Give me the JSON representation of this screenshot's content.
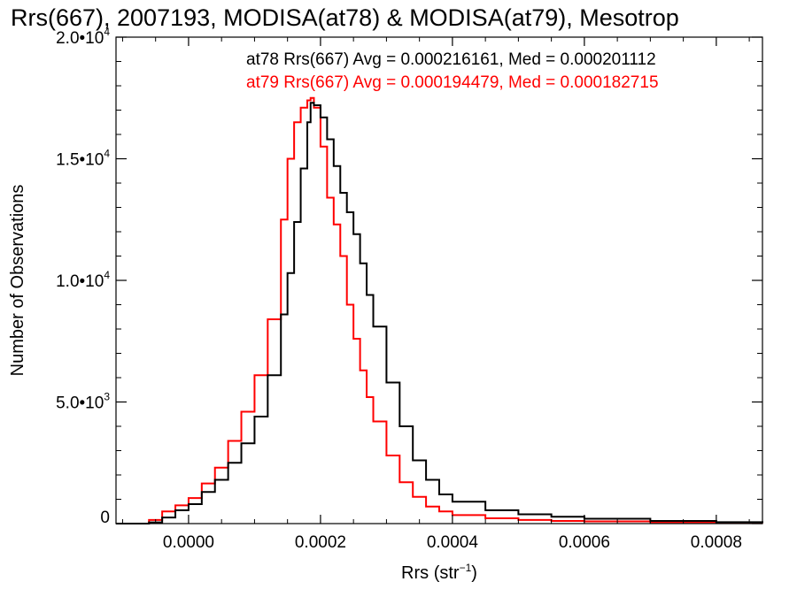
{
  "chart_data": {
    "type": "line",
    "title": "Rrs(667), 2007193, MODISA(at78) & MODISA(at79), Mesotrop",
    "xlabel_main": "Rrs (str",
    "xlabel_sup": "−1",
    "xlabel_end": ")",
    "ylabel": "Number of Observations",
    "xlim": [
      -0.00011,
      0.00087
    ],
    "ylim": [
      0,
      20000
    ],
    "x_ticks": [
      {
        "value": 0.0,
        "label": "0.0000"
      },
      {
        "value": 0.0002,
        "label": "0.0002"
      },
      {
        "value": 0.0004,
        "label": "0.0004"
      },
      {
        "value": 0.0006,
        "label": "0.0006"
      },
      {
        "value": 0.0008,
        "label": "0.0008"
      }
    ],
    "y_ticks": [
      {
        "value": 0,
        "mant": "0",
        "exp": ""
      },
      {
        "value": 5000,
        "mant": "5.0•10",
        "exp": "3"
      },
      {
        "value": 10000,
        "mant": "1.0•10",
        "exp": "4"
      },
      {
        "value": 15000,
        "mant": "1.5•10",
        "exp": "4"
      },
      {
        "value": 20000,
        "mant": "2.0•10",
        "exp": "4"
      }
    ],
    "legend": [
      {
        "text": "at78 Rrs(667) Avg = 0.000216161, Med = 0.000201112",
        "color": "#000000"
      },
      {
        "text": "at79 Rrs(667) Avg = 0.000194479, Med = 0.000182715",
        "color": "#ff0000"
      }
    ],
    "series": [
      {
        "name": "at78",
        "color": "#000000",
        "points": [
          [
            -0.00011,
            0
          ],
          [
            -6e-05,
            50
          ],
          [
            -4e-05,
            250
          ],
          [
            -2e-05,
            550
          ],
          [
            0.0,
            800
          ],
          [
            2e-05,
            1300
          ],
          [
            4e-05,
            1800
          ],
          [
            6e-05,
            2500
          ],
          [
            8e-05,
            3300
          ],
          [
            0.0001,
            4400
          ],
          [
            0.00012,
            6100
          ],
          [
            0.00014,
            8600
          ],
          [
            0.00015,
            10300
          ],
          [
            0.00016,
            12400
          ],
          [
            0.00017,
            14600
          ],
          [
            0.00018,
            16500
          ],
          [
            0.000185,
            17300
          ],
          [
            0.00019,
            17200
          ],
          [
            0.0002,
            16700
          ],
          [
            0.00021,
            15800
          ],
          [
            0.00022,
            14700
          ],
          [
            0.00023,
            13600
          ],
          [
            0.00024,
            12800
          ],
          [
            0.00025,
            11900
          ],
          [
            0.00026,
            10700
          ],
          [
            0.00027,
            9400
          ],
          [
            0.00028,
            8100
          ],
          [
            0.0003,
            5800
          ],
          [
            0.00032,
            4000
          ],
          [
            0.00034,
            2600
          ],
          [
            0.00036,
            1800
          ],
          [
            0.00038,
            1200
          ],
          [
            0.0004,
            900
          ],
          [
            0.00045,
            550
          ],
          [
            0.0005,
            380
          ],
          [
            0.00055,
            280
          ],
          [
            0.0006,
            200
          ],
          [
            0.0007,
            110
          ],
          [
            0.0008,
            60
          ],
          [
            0.00087,
            30
          ]
        ]
      },
      {
        "name": "at79",
        "color": "#ff0000",
        "points": [
          [
            -0.00011,
            0
          ],
          [
            -6e-05,
            150
          ],
          [
            -4e-05,
            500
          ],
          [
            -2e-05,
            750
          ],
          [
            0.0,
            1050
          ],
          [
            2e-05,
            1650
          ],
          [
            4e-05,
            2300
          ],
          [
            6e-05,
            3400
          ],
          [
            8e-05,
            4600
          ],
          [
            0.0001,
            6100
          ],
          [
            0.00012,
            8400
          ],
          [
            0.00014,
            12500
          ],
          [
            0.00015,
            15000
          ],
          [
            0.00016,
            16500
          ],
          [
            0.00017,
            17100
          ],
          [
            0.00018,
            17400
          ],
          [
            0.000185,
            17500
          ],
          [
            0.00019,
            17100
          ],
          [
            0.0002,
            15500
          ],
          [
            0.00021,
            13400
          ],
          [
            0.00022,
            12300
          ],
          [
            0.00023,
            11000
          ],
          [
            0.00024,
            9000
          ],
          [
            0.00025,
            7600
          ],
          [
            0.00026,
            6300
          ],
          [
            0.00027,
            5200
          ],
          [
            0.00028,
            4200
          ],
          [
            0.0003,
            2800
          ],
          [
            0.00032,
            1700
          ],
          [
            0.00034,
            1100
          ],
          [
            0.00036,
            700
          ],
          [
            0.00038,
            500
          ],
          [
            0.0004,
            350
          ],
          [
            0.00045,
            220
          ],
          [
            0.0005,
            150
          ],
          [
            0.00055,
            110
          ],
          [
            0.0006,
            90
          ],
          [
            0.0007,
            60
          ],
          [
            0.0008,
            40
          ],
          [
            0.00087,
            20
          ]
        ]
      }
    ]
  }
}
